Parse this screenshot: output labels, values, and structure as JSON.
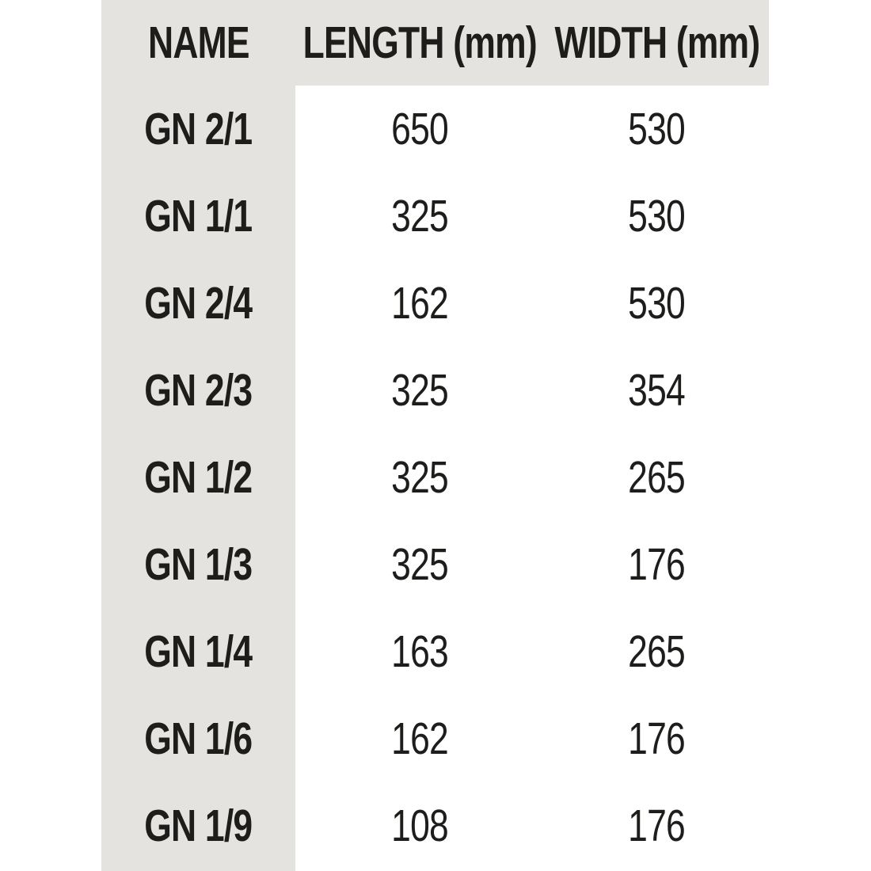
{
  "chart_data": {
    "type": "table",
    "columns": [
      "NAME",
      "LENGTH (mm)",
      "WIDTH (mm)"
    ],
    "rows": [
      [
        "GN 2/1",
        "650",
        "530"
      ],
      [
        "GN 1/1",
        "325",
        "530"
      ],
      [
        "GN 2/4",
        "162",
        "530"
      ],
      [
        "GN 2/3",
        "325",
        "354"
      ],
      [
        "GN 1/2",
        "325",
        "265"
      ],
      [
        "GN 1/3",
        "325",
        "176"
      ],
      [
        "GN 1/4",
        "163",
        "265"
      ],
      [
        "GN 1/6",
        "162",
        "176"
      ],
      [
        "GN 1/9",
        "108",
        "176"
      ]
    ],
    "layout": {
      "header_band": true,
      "name_column_band": true,
      "grid": "off"
    }
  },
  "colors": {
    "band_bg": "#e5e3e0",
    "text": "#1d1d1b",
    "page_bg": "#ffffff"
  }
}
